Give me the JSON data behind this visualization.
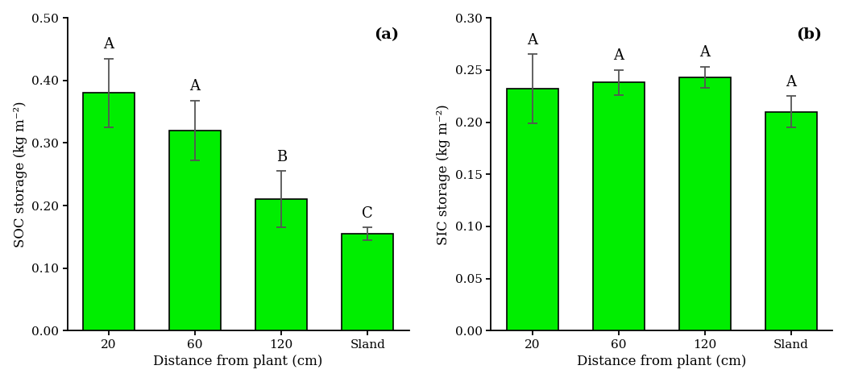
{
  "fig_width": 10.5,
  "fig_height": 4.74,
  "dpi": 100,
  "bar_color": "#00ee00",
  "bar_edgecolor": "#000000",
  "bar_linewidth": 1.2,
  "subplot_a": {
    "label": "(a)",
    "categories": [
      "20",
      "60",
      "120",
      "Sland"
    ],
    "values": [
      0.38,
      0.32,
      0.21,
      0.155
    ],
    "errors": [
      0.055,
      0.048,
      0.045,
      0.01
    ],
    "sig_labels": [
      "A",
      "A",
      "B",
      "C"
    ],
    "xlabel": "Distance from plant (cm)",
    "ylabel": "SOC storage (kg m⁻²)",
    "ylim": [
      0,
      0.5
    ],
    "yticks": [
      0.0,
      0.1,
      0.2,
      0.3,
      0.4,
      0.5
    ]
  },
  "subplot_b": {
    "label": "(b)",
    "categories": [
      "20",
      "60",
      "120",
      "Sland"
    ],
    "values": [
      0.232,
      0.238,
      0.243,
      0.21
    ],
    "errors": [
      0.033,
      0.012,
      0.01,
      0.015
    ],
    "sig_labels": [
      "A",
      "A",
      "A",
      "A"
    ],
    "xlabel": "Distance from plant (cm)",
    "ylabel": "SIC storage (kg m⁻²)",
    "ylim": [
      0,
      0.3
    ],
    "yticks": [
      0.0,
      0.05,
      0.1,
      0.15,
      0.2,
      0.25,
      0.3
    ]
  }
}
